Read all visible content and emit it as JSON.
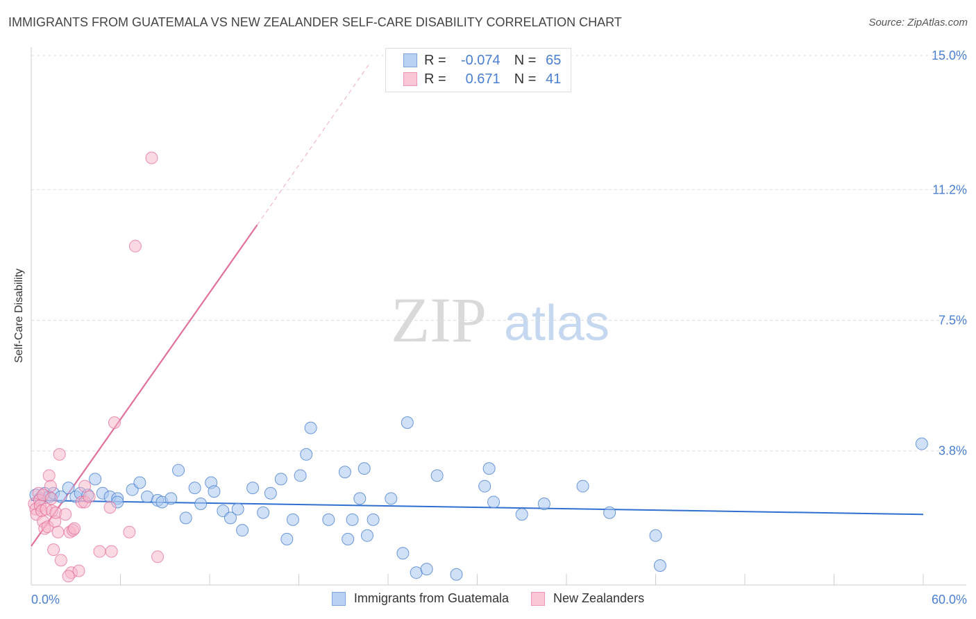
{
  "title": "IMMIGRANTS FROM GUATEMALA VS NEW ZEALANDER SELF-CARE DISABILITY CORRELATION CHART",
  "source": "Source: ZipAtlas.com",
  "watermark": {
    "zip": "ZIP",
    "atlas": "atlas"
  },
  "legend": {
    "rows": [
      {
        "r_label": "R =",
        "r_value": "-0.074",
        "n_label": "N =",
        "n_value": "65"
      },
      {
        "r_label": "R =",
        "r_value": "0.671",
        "n_label": "N =",
        "n_value": "41"
      }
    ]
  },
  "colors": {
    "blue": "#4a7fd0",
    "blue_fill": "#aac8f0",
    "blue_line": "#2f6fd0",
    "pink": "#e36c97",
    "pink_fill": "#f5b3c8",
    "pink_line": "#e0709a",
    "grid": "#dcdcdc",
    "tick_label": "#4a7fd0"
  },
  "chart_data": {
    "type": "scatter",
    "ylabel": "Self-Care Disability",
    "xlim": [
      0,
      60
    ],
    "ylim": [
      0,
      15
    ],
    "x_tick_labels": [
      "0.0%",
      "60.0%"
    ],
    "y_ticks": [
      3.8,
      7.5,
      11.2,
      15.0
    ],
    "y_tick_labels": [
      "3.8%",
      "7.5%",
      "11.2%",
      "15.0%"
    ],
    "grid": true,
    "legend_placement": "bottom-center",
    "series": [
      {
        "name": "Immigrants from Guatemala",
        "color": "#4a7fd0",
        "fill": "#aac8f0",
        "r": -0.074,
        "n": 65,
        "trend": {
          "x0": 0,
          "y0": 2.4,
          "x1": 60,
          "y1": 2.0
        },
        "points": [
          [
            0.3,
            2.55
          ],
          [
            0.6,
            2.45
          ],
          [
            0.9,
            2.6
          ],
          [
            1.2,
            2.5
          ],
          [
            1.5,
            2.6
          ],
          [
            2.0,
            2.5
          ],
          [
            2.5,
            2.75
          ],
          [
            3.0,
            2.5
          ],
          [
            3.3,
            2.6
          ],
          [
            3.8,
            2.55
          ],
          [
            4.3,
            3.0
          ],
          [
            4.8,
            2.6
          ],
          [
            5.3,
            2.5
          ],
          [
            5.8,
            2.45
          ],
          [
            5.8,
            2.35
          ],
          [
            6.8,
            2.7
          ],
          [
            7.3,
            2.9
          ],
          [
            7.8,
            2.5
          ],
          [
            8.5,
            2.4
          ],
          [
            8.8,
            2.35
          ],
          [
            9.4,
            2.45
          ],
          [
            9.9,
            3.25
          ],
          [
            10.4,
            1.9
          ],
          [
            11.0,
            2.75
          ],
          [
            11.4,
            2.3
          ],
          [
            12.1,
            2.9
          ],
          [
            12.3,
            2.65
          ],
          [
            12.9,
            2.1
          ],
          [
            13.4,
            1.9
          ],
          [
            13.9,
            2.15
          ],
          [
            14.2,
            1.55
          ],
          [
            14.9,
            2.75
          ],
          [
            15.6,
            2.05
          ],
          [
            16.1,
            2.6
          ],
          [
            16.8,
            3.0
          ],
          [
            17.2,
            1.3
          ],
          [
            17.6,
            1.85
          ],
          [
            18.1,
            3.1
          ],
          [
            18.5,
            3.7
          ],
          [
            18.8,
            4.45
          ],
          [
            20.0,
            1.85
          ],
          [
            21.1,
            3.2
          ],
          [
            21.3,
            1.3
          ],
          [
            21.6,
            1.85
          ],
          [
            22.1,
            2.45
          ],
          [
            22.4,
            3.3
          ],
          [
            22.6,
            1.4
          ],
          [
            23.0,
            1.85
          ],
          [
            24.2,
            2.45
          ],
          [
            25.0,
            0.9
          ],
          [
            25.3,
            4.6
          ],
          [
            25.9,
            0.35
          ],
          [
            26.6,
            0.45
          ],
          [
            27.3,
            3.1
          ],
          [
            28.6,
            0.3
          ],
          [
            30.5,
            2.8
          ],
          [
            30.8,
            3.3
          ],
          [
            31.1,
            2.35
          ],
          [
            33.0,
            2.0
          ],
          [
            34.5,
            2.3
          ],
          [
            37.1,
            2.8
          ],
          [
            38.9,
            2.05
          ],
          [
            42.0,
            1.4
          ],
          [
            42.3,
            0.55
          ],
          [
            59.9,
            4.0
          ]
        ]
      },
      {
        "name": "New Zealanders",
        "color": "#e36c97",
        "fill": "#f5b3c8",
        "r": 0.671,
        "n": 41,
        "trend_solid": {
          "x0": 0,
          "y0": 1.1,
          "x1": 15.2,
          "y1": 10.2
        },
        "trend_dashed": {
          "x0": 15.2,
          "y0": 10.2,
          "x1": 22.8,
          "y1": 14.8
        },
        "points": [
          [
            0.2,
            2.3
          ],
          [
            0.3,
            2.15
          ],
          [
            0.35,
            2.0
          ],
          [
            0.5,
            2.6
          ],
          [
            0.55,
            2.4
          ],
          [
            0.6,
            2.25
          ],
          [
            0.7,
            2.1
          ],
          [
            0.8,
            1.8
          ],
          [
            0.8,
            2.55
          ],
          [
            0.9,
            1.6
          ],
          [
            1.0,
            2.15
          ],
          [
            1.1,
            1.65
          ],
          [
            1.2,
            3.1
          ],
          [
            1.3,
            2.8
          ],
          [
            1.35,
            2.45
          ],
          [
            1.4,
            2.1
          ],
          [
            1.5,
            1.0
          ],
          [
            1.6,
            1.8
          ],
          [
            1.65,
            2.05
          ],
          [
            1.8,
            1.5
          ],
          [
            1.9,
            3.7
          ],
          [
            2.0,
            0.7
          ],
          [
            2.3,
            2.0
          ],
          [
            2.6,
            1.5
          ],
          [
            2.7,
            0.35
          ],
          [
            2.8,
            1.55
          ],
          [
            2.9,
            1.6
          ],
          [
            3.2,
            0.4
          ],
          [
            2.5,
            0.25
          ],
          [
            3.4,
            2.35
          ],
          [
            3.6,
            2.35
          ],
          [
            3.6,
            2.8
          ],
          [
            3.9,
            2.5
          ],
          [
            4.6,
            0.95
          ],
          [
            5.3,
            2.2
          ],
          [
            5.4,
            0.95
          ],
          [
            5.6,
            4.6
          ],
          [
            6.6,
            1.5
          ],
          [
            7.0,
            9.6
          ],
          [
            8.1,
            12.1
          ],
          [
            8.5,
            0.8
          ]
        ]
      }
    ]
  }
}
